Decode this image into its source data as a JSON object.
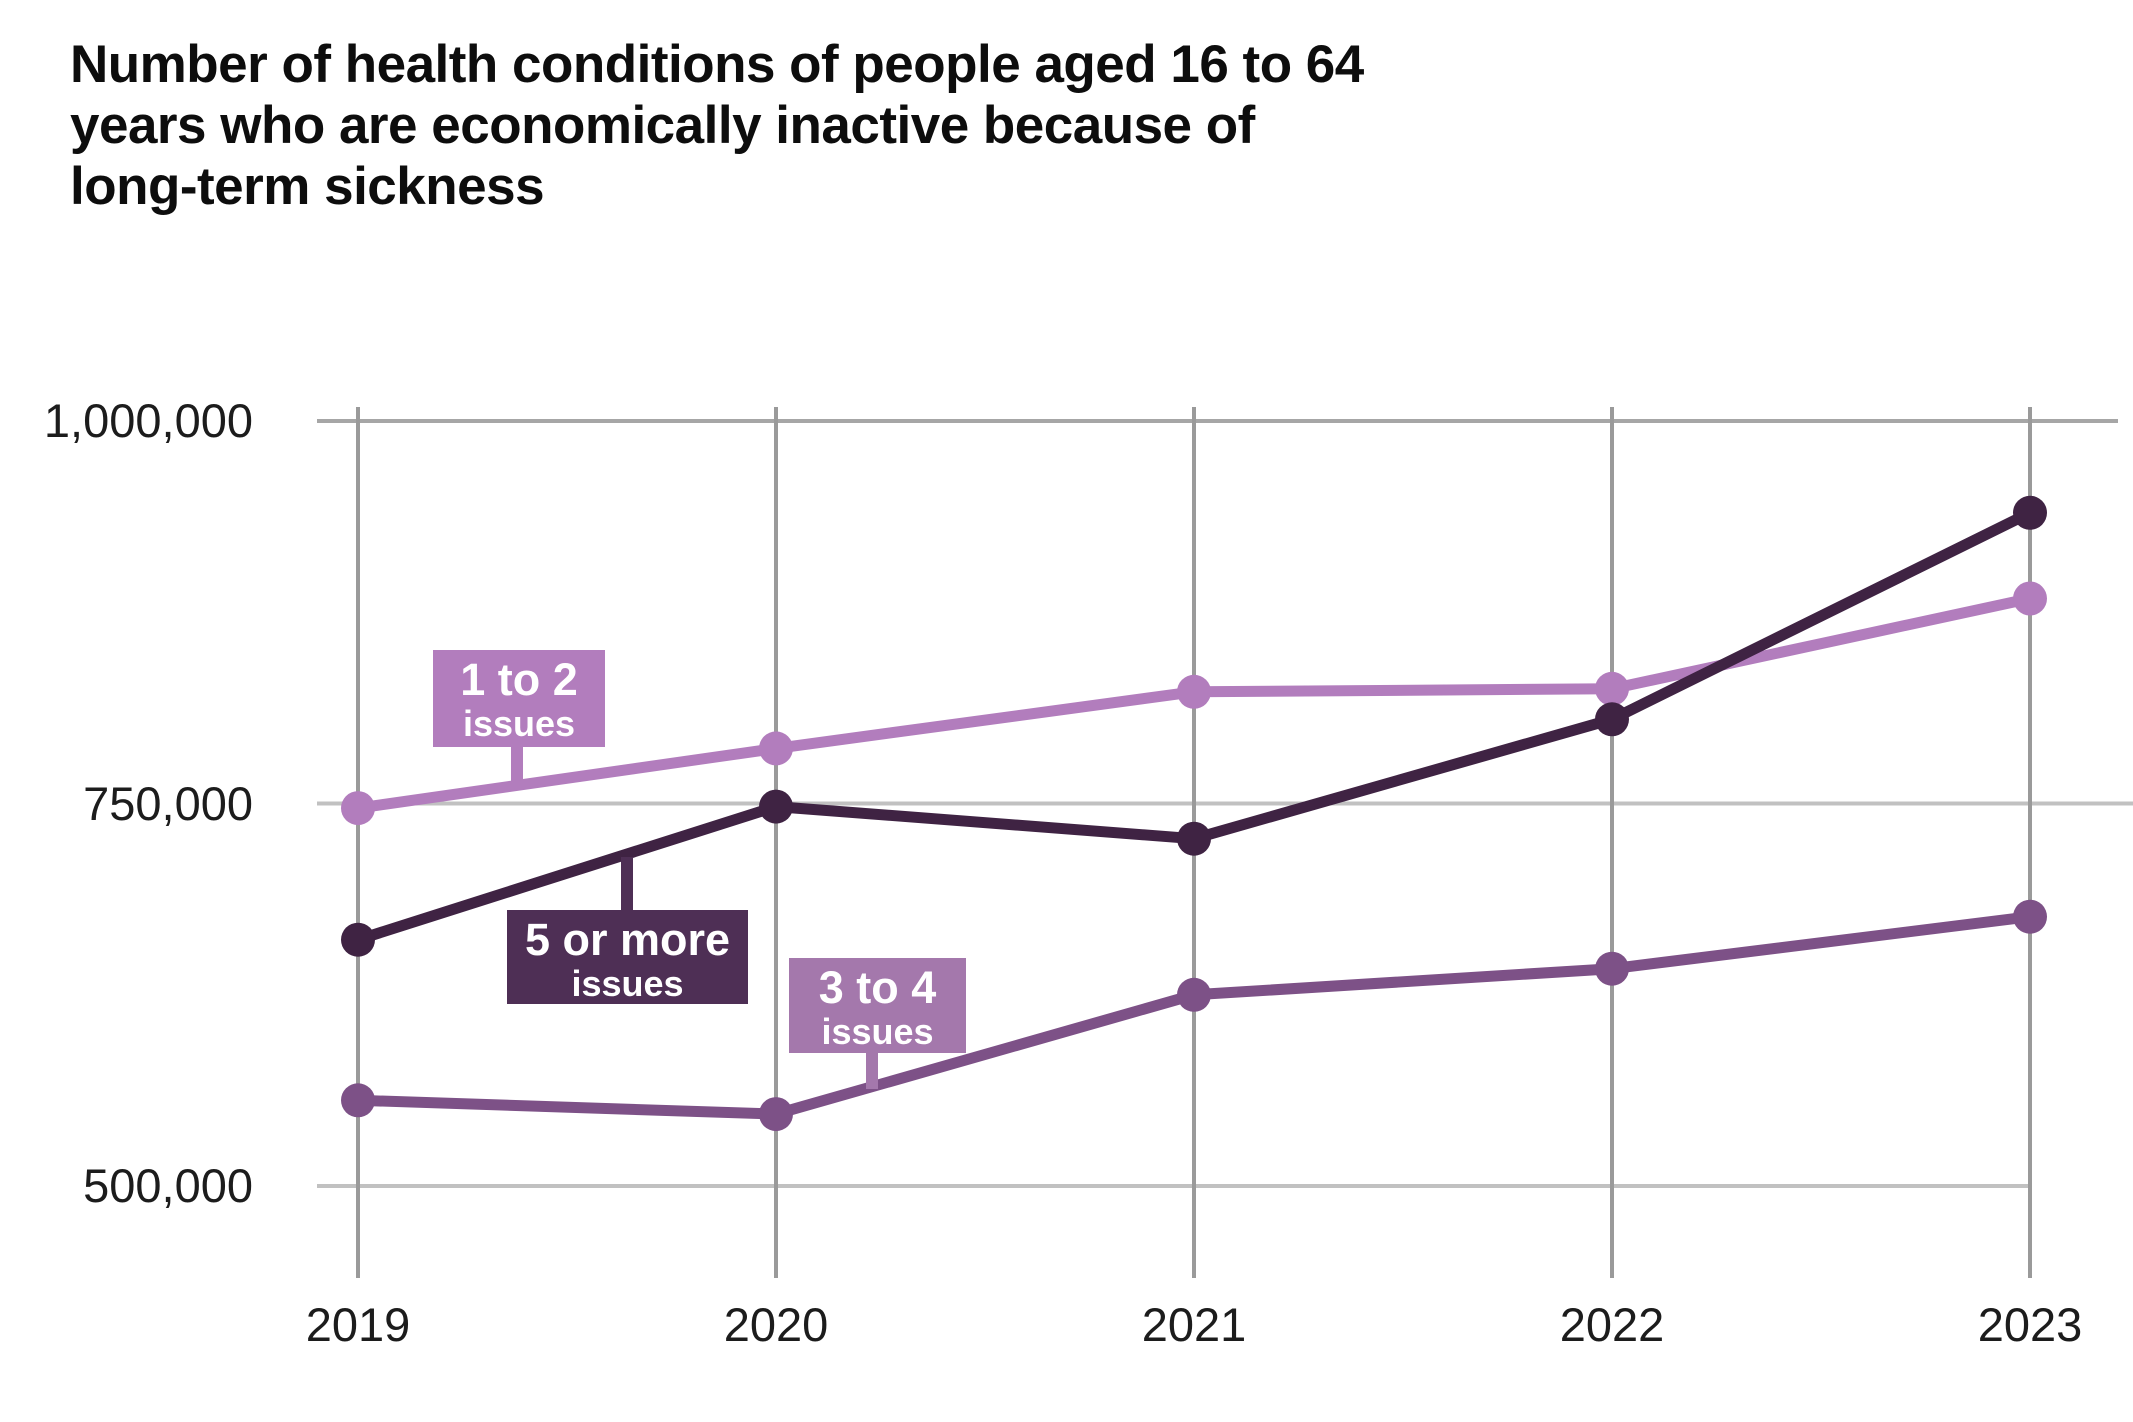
{
  "chart_data": {
    "type": "line",
    "title": "Number of health conditions of people aged 16 to 64\nyears who are economically inactive because of\nlong-term sickness",
    "x": [
      2019,
      2020,
      2021,
      2022,
      2023
    ],
    "x_tick_labels": [
      "2019",
      "2020",
      "2021",
      "2022",
      "2023"
    ],
    "y_tick_labels": [
      "1,000,000",
      "750,000",
      "500,000"
    ],
    "y_tick_values": [
      1000000,
      750000,
      500000
    ],
    "ylim": [
      430000,
      1010000
    ],
    "grid": "both",
    "legend_position": "inline annotation boxes on lines",
    "series": [
      {
        "name": "1 to 2 issues",
        "label_line1": "1 to 2",
        "label_line2": "issues",
        "color": "#b27dbd",
        "box_color": "#b27dbd",
        "values": [
          747000,
          786000,
          823000,
          825000,
          884000
        ]
      },
      {
        "name": "3 to 4 issues",
        "label_line1": "3 to 4",
        "label_line2": "issues",
        "color": "#7d5187",
        "box_color": "#a478ac",
        "values": [
          556000,
          547000,
          625000,
          642000,
          676000
        ]
      },
      {
        "name": "5 or more issues",
        "label_line1": "5 or more",
        "label_line2": "issues",
        "color": "#3f2343",
        "box_color": "#4e2f55",
        "values": [
          661000,
          748000,
          727000,
          805000,
          940000
        ]
      }
    ],
    "colors": {
      "grid_vertical": "#9a9a9a",
      "grid_top": "#a6a6a6",
      "grid_light": "#c1c1c1",
      "text": "#1c1c1c",
      "title_text": "#0d0d0d"
    }
  }
}
